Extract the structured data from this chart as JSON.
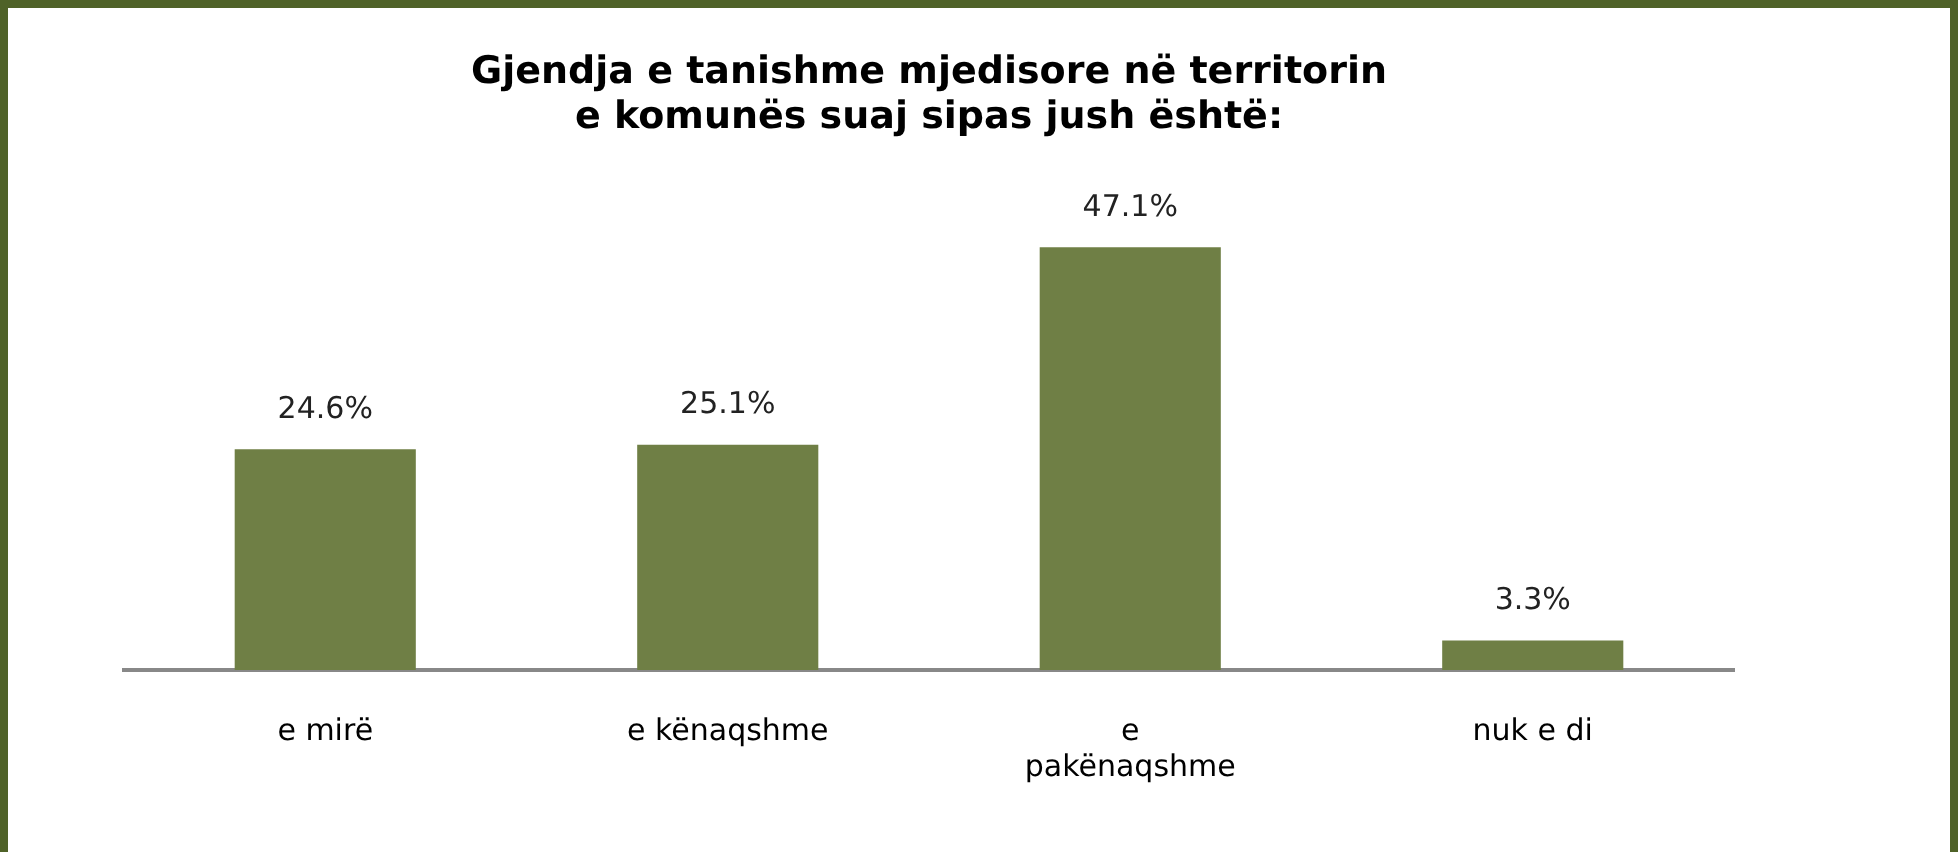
{
  "chart_data": {
    "type": "bar",
    "title": "Gjendja e tanishme mjedisore në territorin e komunës suaj sipas jush është:",
    "categories": [
      "e mirë",
      "e kënaqshme",
      "e pakënaqshme",
      "nuk e di"
    ],
    "values": [
      24.6,
      25.1,
      47.1,
      3.3
    ],
    "value_labels": [
      "24.6%",
      "25.1%",
      "47.1%",
      "3.3%"
    ],
    "color": "#6f7f45",
    "tick_labels": "x",
    "grid": false,
    "legend": false
  }
}
